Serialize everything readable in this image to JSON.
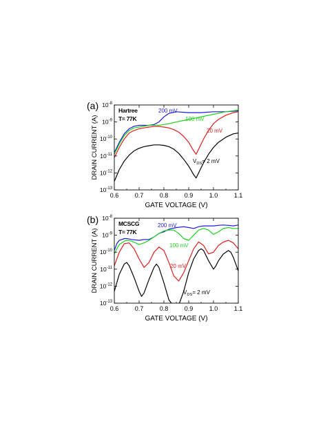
{
  "chart_data": [
    {
      "type": "line",
      "panel_label": "(a)",
      "annotation": [
        "Hartree",
        "T= 77K"
      ],
      "xlabel": "GATE VOLTAGE (V)",
      "ylabel": "DRAIN CURRENT (A)",
      "xlim": [
        0.6,
        1.1
      ],
      "ylim_exponent": [
        -13,
        -8
      ],
      "log_y": true,
      "grid": false,
      "x_ticks": [
        "0.6",
        "0.7",
        "0.8",
        "0.9",
        "1.0",
        "1.1"
      ],
      "y_tick_exponents": [
        -13,
        -12,
        -11,
        -10,
        -9,
        -8
      ],
      "series": [
        {
          "label": "200 mV",
          "color": "#1a1adc",
          "x": [
            0.6,
            0.62,
            0.64,
            0.66,
            0.68,
            0.7,
            0.72,
            0.74,
            0.76,
            0.78,
            0.8,
            0.82,
            0.85,
            0.9,
            0.95,
            1.0,
            1.05,
            1.1
          ],
          "log_y": [
            -10.8,
            -10.2,
            -9.7,
            -9.4,
            -9.25,
            -9.2,
            -9.2,
            -9.2,
            -9.15,
            -9.0,
            -8.7,
            -8.5,
            -8.4,
            -8.45,
            -8.45,
            -8.4,
            -8.4,
            -8.35
          ]
        },
        {
          "label": "100 mV",
          "color": "#1ed21e",
          "x": [
            0.6,
            0.62,
            0.64,
            0.66,
            0.68,
            0.7,
            0.72,
            0.74,
            0.76,
            0.78,
            0.8,
            0.82,
            0.85,
            0.9,
            0.95,
            1.0,
            1.05,
            1.1
          ],
          "log_y": [
            -10.9,
            -10.3,
            -9.8,
            -9.5,
            -9.35,
            -9.3,
            -9.25,
            -9.2,
            -9.2,
            -9.2,
            -9.15,
            -9.1,
            -9.0,
            -8.85,
            -8.7,
            -8.55,
            -8.4,
            -8.3
          ]
        },
        {
          "label": "20 mV",
          "color": "#e01c1c",
          "x": [
            0.6,
            0.62,
            0.64,
            0.66,
            0.68,
            0.7,
            0.72,
            0.74,
            0.76,
            0.78,
            0.8,
            0.82,
            0.84,
            0.86,
            0.88,
            0.9,
            0.92,
            0.93,
            0.94,
            0.96,
            0.98,
            1.0,
            1.02,
            1.05,
            1.08,
            1.1
          ],
          "log_y": [
            -11.1,
            -10.5,
            -10.0,
            -9.65,
            -9.5,
            -9.4,
            -9.35,
            -9.3,
            -9.27,
            -9.27,
            -9.3,
            -9.35,
            -9.45,
            -9.6,
            -9.85,
            -10.2,
            -10.7,
            -10.9,
            -10.6,
            -10.0,
            -9.5,
            -9.1,
            -8.85,
            -8.6,
            -8.45,
            -8.4
          ]
        },
        {
          "label": "V_DS= 2 mV",
          "color": "#000000",
          "x": [
            0.6,
            0.62,
            0.64,
            0.66,
            0.68,
            0.7,
            0.72,
            0.74,
            0.76,
            0.78,
            0.8,
            0.82,
            0.84,
            0.86,
            0.88,
            0.9,
            0.92,
            0.93,
            0.94,
            0.96,
            0.98,
            1.0,
            1.02,
            1.05,
            1.08,
            1.1
          ],
          "log_y": [
            -12.5,
            -11.8,
            -11.3,
            -10.95,
            -10.7,
            -10.55,
            -10.45,
            -10.4,
            -10.35,
            -10.35,
            -10.38,
            -10.45,
            -10.6,
            -10.85,
            -11.2,
            -11.6,
            -12.1,
            -12.3,
            -12.0,
            -11.4,
            -10.9,
            -10.5,
            -10.2,
            -9.9,
            -9.7,
            -9.65
          ]
        }
      ]
    },
    {
      "type": "line",
      "panel_label": "(b)",
      "annotation": [
        "MCSCG",
        "T= 77K"
      ],
      "xlabel": "GATE VOLTAGE (V)",
      "ylabel": "DRAIN CURRENT (A)",
      "xlim": [
        0.6,
        1.1
      ],
      "ylim_exponent": [
        -13,
        -8
      ],
      "log_y": true,
      "grid": false,
      "x_ticks": [
        "0.6",
        "0.7",
        "0.8",
        "0.9",
        "1.0",
        "1.1"
      ],
      "y_tick_exponents": [
        -13,
        -12,
        -11,
        -10,
        -9,
        -8
      ],
      "series": [
        {
          "label": "200 mV",
          "color": "#1a1adc",
          "x": [
            0.6,
            0.61,
            0.62,
            0.63,
            0.64,
            0.65,
            0.67,
            0.7,
            0.72,
            0.74,
            0.76,
            0.78,
            0.8,
            0.82,
            0.85,
            0.88,
            0.9,
            0.92,
            0.94,
            0.96,
            0.98,
            1.0,
            1.02,
            1.04,
            1.06,
            1.08,
            1.1
          ],
          "log_y": [
            -9.9,
            -9.5,
            -9.3,
            -9.25,
            -9.2,
            -9.2,
            -9.25,
            -9.3,
            -9.25,
            -9.25,
            -9.1,
            -8.9,
            -8.8,
            -8.65,
            -8.55,
            -8.5,
            -8.55,
            -8.6,
            -8.5,
            -8.45,
            -8.45,
            -8.45,
            -8.42,
            -8.4,
            -8.42,
            -8.45,
            -8.4
          ]
        },
        {
          "label": "100 mV",
          "color": "#1ed21e",
          "x": [
            0.6,
            0.61,
            0.62,
            0.63,
            0.64,
            0.65,
            0.67,
            0.7,
            0.72,
            0.74,
            0.76,
            0.78,
            0.8,
            0.82,
            0.84,
            0.86,
            0.88,
            0.9,
            0.92,
            0.94,
            0.96,
            0.98,
            1.0,
            1.02,
            1.04,
            1.06,
            1.08,
            1.1
          ],
          "log_y": [
            -10.1,
            -9.8,
            -9.55,
            -9.45,
            -9.35,
            -9.3,
            -9.35,
            -9.55,
            -9.45,
            -9.3,
            -9.1,
            -8.9,
            -8.75,
            -8.7,
            -8.7,
            -8.9,
            -9.2,
            -9.3,
            -9.0,
            -8.7,
            -8.6,
            -8.7,
            -8.95,
            -8.8,
            -8.6,
            -8.55,
            -8.6,
            -8.6
          ]
        },
        {
          "label": "20 mV",
          "color": "#e01c1c",
          "x": [
            0.6,
            0.62,
            0.64,
            0.66,
            0.68,
            0.7,
            0.72,
            0.74,
            0.76,
            0.78,
            0.8,
            0.82,
            0.84,
            0.86,
            0.88,
            0.9,
            0.92,
            0.94,
            0.96,
            0.98,
            1.0,
            1.02,
            1.04,
            1.06,
            1.08,
            1.1
          ],
          "log_y": [
            -10.8,
            -10.0,
            -9.5,
            -9.45,
            -9.8,
            -10.4,
            -10.9,
            -10.6,
            -10.0,
            -9.7,
            -9.9,
            -10.6,
            -11.4,
            -11.7,
            -11.2,
            -10.5,
            -9.8,
            -9.4,
            -9.6,
            -10.1,
            -10.0,
            -9.6,
            -9.4,
            -9.3,
            -9.45,
            -9.8
          ]
        },
        {
          "label": "V_DS= 2 mV",
          "color": "#000000",
          "x": [
            0.6,
            0.62,
            0.64,
            0.65,
            0.66,
            0.68,
            0.7,
            0.71,
            0.72,
            0.74,
            0.76,
            0.77,
            0.78,
            0.8,
            0.82,
            0.84,
            0.85,
            0.86,
            0.88,
            0.9,
            0.92,
            0.94,
            0.95,
            0.96,
            0.98,
            1.0,
            1.01,
            1.02,
            1.04,
            1.06,
            1.07,
            1.08,
            1.1
          ],
          "log_y": [
            -12.3,
            -11.3,
            -10.7,
            -10.6,
            -10.8,
            -11.5,
            -12.3,
            -12.6,
            -12.4,
            -11.6,
            -10.9,
            -10.7,
            -10.9,
            -11.8,
            -12.8,
            -13.2,
            -13.3,
            -13.1,
            -12.3,
            -11.2,
            -10.4,
            -9.9,
            -9.8,
            -9.9,
            -10.5,
            -11.0,
            -10.8,
            -10.5,
            -10.1,
            -9.9,
            -10.0,
            -10.3,
            -11.1
          ]
        }
      ]
    }
  ]
}
